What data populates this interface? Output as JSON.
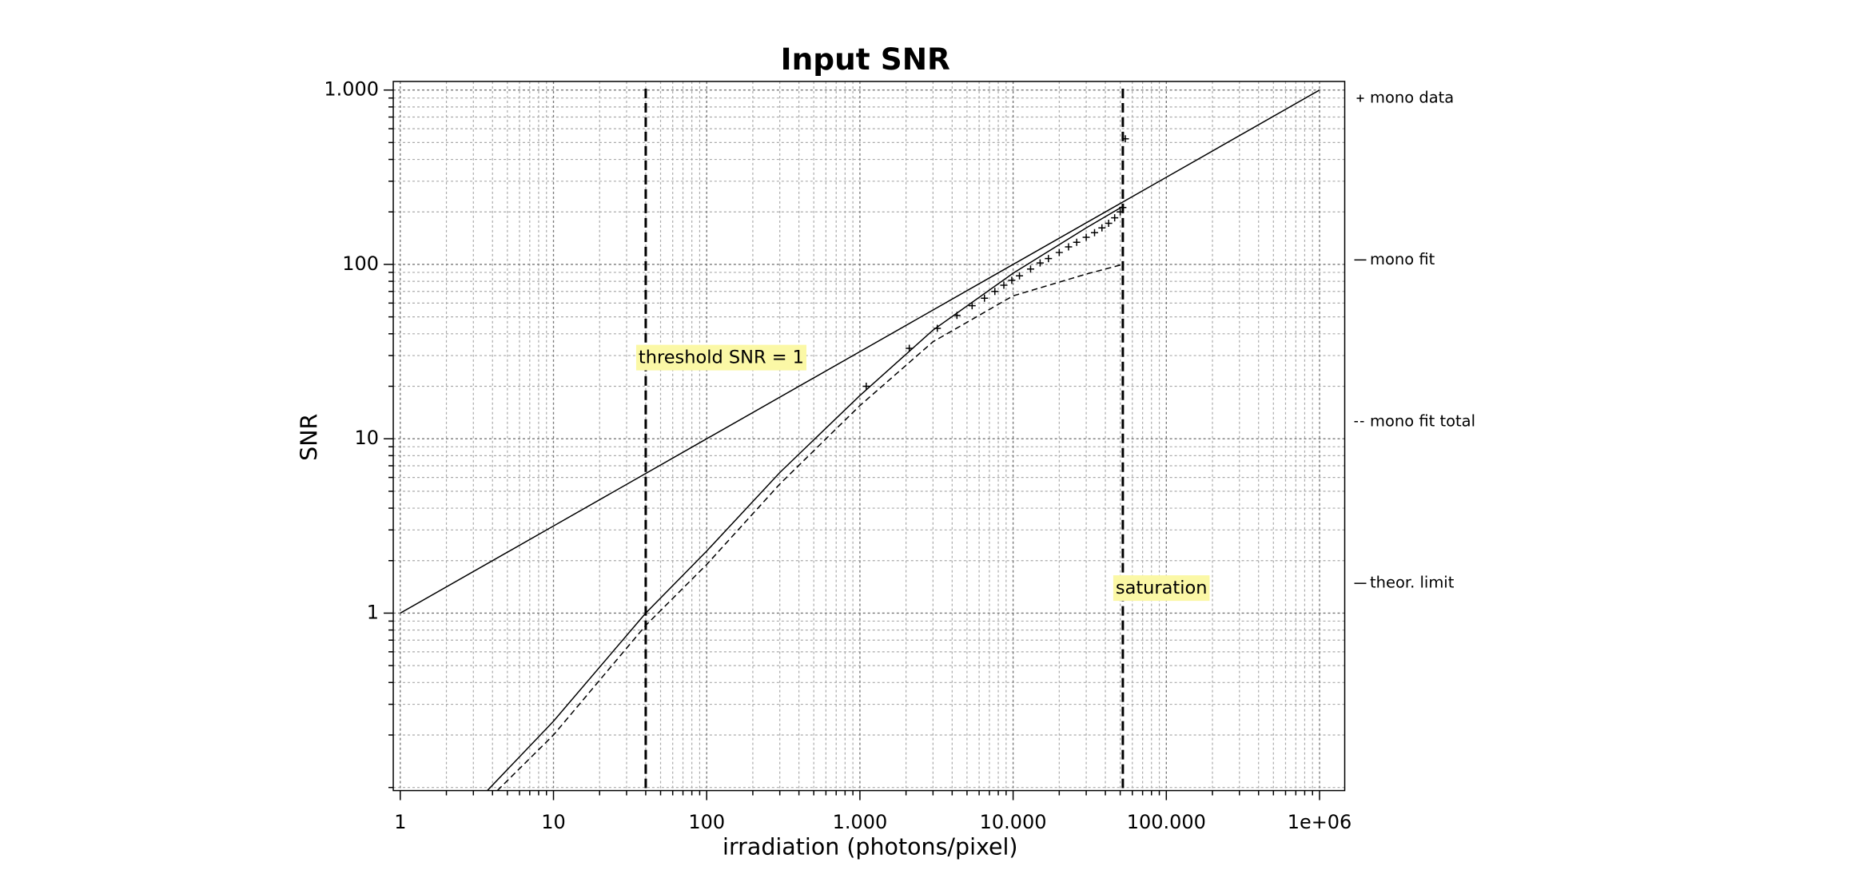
{
  "chart_data": {
    "type": "line",
    "title": "Input SNR",
    "xlabel": "irradiation (photons/pixel)",
    "ylabel": "SNR",
    "xscale": "log",
    "yscale": "log",
    "grid": true,
    "legend": "right",
    "xlim": [
      0.9,
      1460000
    ],
    "ylim": [
      0.096,
      1120
    ],
    "xticks": [
      1,
      10,
      100,
      {
        "value": 1000,
        "label": "1.000"
      },
      {
        "value": 10000,
        "label": "10.000"
      },
      {
        "value": 100000,
        "label": "100.000"
      },
      {
        "value": 1000000,
        "label": "1e+06"
      }
    ],
    "yticks": [
      1,
      10,
      100,
      {
        "value": 1000,
        "label": "1.000"
      }
    ],
    "xminorticks": [
      2,
      3,
      4,
      5,
      6,
      7,
      8,
      9,
      20,
      30,
      40,
      50,
      60,
      70,
      80,
      90,
      200,
      300,
      400,
      500,
      600,
      700,
      800,
      900,
      2000,
      3000,
      4000,
      5000,
      6000,
      7000,
      8000,
      9000,
      20000,
      30000,
      40000,
      50000,
      60000,
      70000,
      80000,
      90000,
      200000,
      300000,
      400000,
      500000,
      600000,
      700000,
      800000,
      900000
    ],
    "yminorticks": [
      0.1,
      0.2,
      0.3,
      0.4,
      0.5,
      0.6,
      0.7,
      0.8,
      0.9,
      2,
      3,
      4,
      5,
      6,
      7,
      8,
      9,
      20,
      30,
      40,
      50,
      60,
      70,
      80,
      90,
      200,
      300,
      400,
      500,
      600,
      700,
      800,
      900
    ],
    "series": [
      {
        "name": "mono data",
        "style": "markers",
        "color": "#000000",
        "x": [
          1100,
          2100,
          3200,
          4300,
          5400,
          6500,
          7600,
          8700,
          9800,
          11000,
          13000,
          15000,
          17000,
          20000,
          23000,
          26000,
          30000,
          34000,
          38000,
          42000,
          46000,
          50000,
          52000,
          54000
        ],
        "values": [
          20,
          33,
          43,
          51,
          58,
          64,
          70,
          76,
          81,
          86,
          94,
          102,
          108,
          117,
          126,
          134,
          143,
          152,
          162,
          172,
          185,
          200,
          212,
          525
        ]
      },
      {
        "name": "mono fit",
        "style": "solid",
        "color": "#000000",
        "x": [
          3.7,
          10,
          40,
          100,
          300,
          1000,
          3000,
          10000,
          30000,
          52000
        ],
        "values": [
          0.096,
          0.24,
          1,
          2.27,
          6.4,
          17.7,
          42,
          89,
          162,
          215
        ]
      },
      {
        "name": "mono fit total",
        "style": "dashed",
        "color": "#000000",
        "x": [
          4.3,
          10,
          40,
          100,
          300,
          1000,
          3000,
          10000,
          30000,
          52000
        ],
        "values": [
          0.096,
          0.2,
          0.85,
          1.9,
          5.5,
          15.5,
          36,
          66,
          88,
          100
        ]
      },
      {
        "name": "theor. limit",
        "style": "solid",
        "color": "#000000",
        "x": [
          1,
          10,
          100,
          1000,
          10000,
          100000,
          1000000
        ],
        "values": [
          1,
          3.16,
          10,
          31.6,
          100,
          316,
          1000
        ]
      }
    ],
    "vlines": [
      {
        "x": 40,
        "label": "threshold SNR = 1"
      },
      {
        "x": 52000,
        "label": "saturation"
      }
    ]
  }
}
